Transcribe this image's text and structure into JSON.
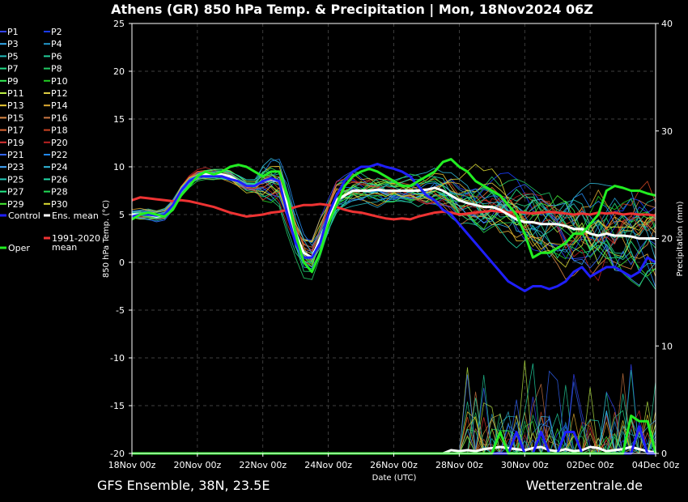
{
  "chart_data": {
    "type": "line",
    "title": "Athens  (GR)  850 hPa Temp. & Precipitation | Mon, 18Nov2024 06Z",
    "xlabel": "Date (UTC)",
    "ylabel": "850 hPa Temp. (°C)",
    "y2label": "Precipitation (mm)",
    "x_ticks": [
      "18Nov 00z",
      "20Nov 00z",
      "22Nov 00z",
      "24Nov 00z",
      "26Nov 00z",
      "28Nov 00z",
      "30Nov 00z",
      "02Dec 00z",
      "04Dec 00z"
    ],
    "y_ticks": [
      25,
      20,
      15,
      10,
      5,
      0,
      -5,
      -10,
      -15,
      -20
    ],
    "y2_ticks": [
      40,
      30,
      20,
      10,
      0
    ],
    "ylim": [
      -20,
      25
    ],
    "y2lim": [
      0,
      40
    ],
    "grid": true,
    "hours_per_step": 6,
    "legend_placement": "left",
    "series": [
      {
        "name": "Oper",
        "color": "#22ee22",
        "width": 3,
        "values": [
          4.5,
          5,
          5.2,
          5,
          4.8,
          5.5,
          7,
          8,
          9,
          9.5,
          9.2,
          9.5,
          10,
          10.2,
          10,
          9.5,
          9,
          9.5,
          9.5,
          7,
          3,
          0,
          -1,
          1,
          4,
          6,
          8,
          9,
          9.5,
          9.8,
          9.5,
          9,
          8.5,
          8,
          8,
          8.5,
          9,
          9.5,
          10.5,
          10.8,
          10,
          9.5,
          8.5,
          8,
          7.5,
          7,
          6,
          5,
          3,
          0.5,
          1,
          1,
          1.5,
          2,
          3,
          3,
          4,
          5,
          7.5,
          8,
          7.8,
          7.5,
          7.5,
          7.2,
          7
        ],
        "precip": [
          0,
          0,
          0,
          0,
          0,
          0,
          0,
          0,
          0,
          0,
          0,
          0,
          0,
          0,
          0,
          0,
          0,
          0,
          0,
          0,
          0,
          0,
          0,
          0,
          0,
          0,
          0,
          0,
          0,
          0,
          0,
          0,
          0,
          0,
          0,
          0,
          0,
          0,
          0,
          0,
          0,
          0,
          0,
          0,
          0,
          2,
          0,
          0,
          0,
          0,
          0,
          0,
          0,
          0,
          0,
          0,
          0,
          0,
          0,
          0,
          0,
          3.5,
          3,
          3,
          0
        ]
      },
      {
        "name": "Control",
        "color": "#1f1fff",
        "width": 3,
        "values": [
          4.8,
          5,
          5,
          4.9,
          5,
          6,
          7.5,
          8.5,
          9,
          9,
          9,
          9,
          8.7,
          8.5,
          8,
          8,
          8.5,
          8.8,
          8.5,
          5,
          2,
          0.5,
          0.5,
          2,
          5,
          7,
          8.5,
          9.5,
          10,
          10,
          10.3,
          10,
          9.8,
          9.5,
          9,
          8,
          7,
          6.5,
          5.5,
          5,
          4,
          3,
          2,
          1,
          0,
          -1,
          -2,
          -2.5,
          -3,
          -2.5,
          -2.5,
          -2.8,
          -2.5,
          -2,
          -1,
          -0.5,
          -1.5,
          -1,
          -0.5,
          -0.5,
          -1,
          -1.5,
          -1,
          0.5,
          0
        ],
        "precip": [
          0,
          0,
          0,
          0,
          0,
          0,
          0,
          0,
          0,
          0,
          0,
          0,
          0,
          0,
          0,
          0,
          0,
          0,
          0,
          0,
          0,
          0,
          0,
          0,
          0,
          0,
          0,
          0,
          0,
          0,
          0,
          0,
          0,
          0,
          0,
          0,
          0,
          0,
          0,
          0,
          0,
          0,
          0,
          0,
          0,
          0,
          0,
          2,
          0,
          0,
          2,
          0,
          0,
          2,
          2,
          0,
          0,
          0,
          0,
          0,
          0,
          0,
          2.5,
          0,
          0
        ]
      },
      {
        "name": "Ens. mean",
        "color": "#ffffff",
        "width": 3,
        "values": [
          5,
          5,
          5,
          4.8,
          5,
          6,
          7.5,
          8.5,
          9,
          9.2,
          9.2,
          9.2,
          9,
          8.5,
          8,
          8,
          8.5,
          8.7,
          8.5,
          6,
          3,
          1,
          0.5,
          2.5,
          4.5,
          6.5,
          7,
          7.5,
          7.5,
          7.5,
          7.6,
          7.5,
          7.5,
          7.5,
          7.5,
          7.5,
          7.6,
          7.8,
          7.5,
          7,
          6.5,
          6.2,
          6,
          5.8,
          5.8,
          5.5,
          5,
          4.5,
          4.2,
          4.2,
          4,
          4,
          4,
          3.8,
          3.5,
          3.5,
          3,
          2.8,
          3,
          2.8,
          2.8,
          2.7,
          2.5,
          2.5,
          2.5
        ],
        "precip": [
          0,
          0,
          0,
          0,
          0,
          0,
          0,
          0,
          0,
          0,
          0,
          0,
          0,
          0,
          0,
          0,
          0,
          0,
          0,
          0,
          0,
          0,
          0,
          0,
          0,
          0,
          0,
          0,
          0,
          0,
          0,
          0,
          0,
          0,
          0,
          0,
          0,
          0,
          0,
          0.3,
          0.2,
          0.3,
          0.2,
          0.4,
          0.5,
          0.6,
          0.5,
          0.4,
          0.3,
          0.5,
          0.6,
          0.3,
          0.2,
          0.4,
          0.2,
          0.3,
          0.6,
          0.5,
          0.2,
          0.3,
          0.4,
          0.6,
          0.4,
          0.2,
          0.1
        ]
      },
      {
        "name": "1991-2020\nmean",
        "color": "#ee3333",
        "width": 3,
        "values": [
          6.5,
          6.8,
          6.7,
          6.6,
          6.5,
          6.4,
          6.5,
          6.4,
          6.2,
          6,
          5.8,
          5.5,
          5.2,
          5,
          4.8,
          4.9,
          5,
          5.2,
          5.3,
          5.5,
          5.8,
          6,
          6,
          6.1,
          6,
          5.8,
          5.5,
          5.3,
          5.2,
          5,
          4.8,
          4.6,
          4.5,
          4.6,
          4.5,
          4.8,
          5,
          5.2,
          5.3,
          5.2,
          5,
          5.1,
          5.2,
          5.3,
          5.4,
          5.3,
          5.2,
          5.3,
          5.2,
          5.1,
          5.2,
          5.3,
          5.2,
          5.1,
          5,
          5.1,
          5,
          5.2,
          5.1,
          5.2,
          5,
          5.1,
          5,
          5,
          4.9
        ]
      }
    ],
    "members": [
      {
        "name": "P1",
        "color": "#3344ff"
      },
      {
        "name": "P2",
        "color": "#1a3cff"
      },
      {
        "name": "P3",
        "color": "#33aaee"
      },
      {
        "name": "P4",
        "color": "#2299cc"
      },
      {
        "name": "P5",
        "color": "#22bbbb"
      },
      {
        "name": "P6",
        "color": "#22cc99"
      },
      {
        "name": "P7",
        "color": "#22dd88"
      },
      {
        "name": "P8",
        "color": "#22cc66"
      },
      {
        "name": "P9",
        "color": "#33ee55"
      },
      {
        "name": "P10",
        "color": "#22cc22"
      },
      {
        "name": "P11",
        "color": "#bbee44"
      },
      {
        "name": "P12",
        "color": "#ddcc44"
      },
      {
        "name": "P13",
        "color": "#eecc33"
      },
      {
        "name": "P14",
        "color": "#ddaa33"
      },
      {
        "name": "P15",
        "color": "#dd8844"
      },
      {
        "name": "P16",
        "color": "#cc7744"
      },
      {
        "name": "P17",
        "color": "#dd6633"
      },
      {
        "name": "P18",
        "color": "#cc4422"
      },
      {
        "name": "P19",
        "color": "#dd3333"
      },
      {
        "name": "P20",
        "color": "#bb2222"
      },
      {
        "name": "P21",
        "color": "#3366ff"
      },
      {
        "name": "P22",
        "color": "#2288ee"
      },
      {
        "name": "P23",
        "color": "#44aaff"
      },
      {
        "name": "P24",
        "color": "#33bbdd"
      },
      {
        "name": "P25",
        "color": "#22ccbb"
      },
      {
        "name": "P26",
        "color": "#22ddaa"
      },
      {
        "name": "P27",
        "color": "#22ee88"
      },
      {
        "name": "P28",
        "color": "#22dd55"
      },
      {
        "name": "P29",
        "color": "#44ee33"
      },
      {
        "name": "P30",
        "color": "#dddd33"
      }
    ]
  },
  "footer": {
    "left": "GFS Ensemble, 38N, 23.5E",
    "right": "Wetterzentrale.de"
  }
}
